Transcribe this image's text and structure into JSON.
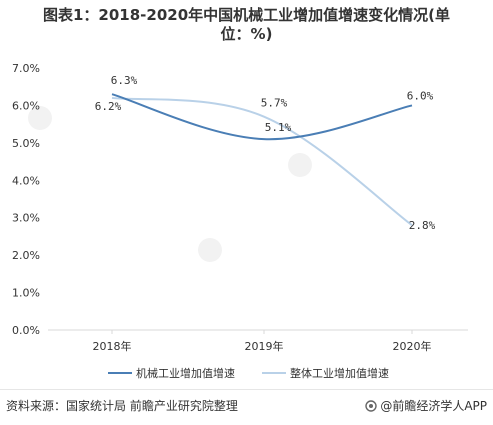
{
  "title_line1": "图表1：2018-2020年中国机械工业增加值增速变化情况(单",
  "title_line2": "位：%)",
  "source": "资料来源：国家统计局 前瞻产业研究院整理",
  "brand": "@前瞻经济学人APP",
  "colors": {
    "series1": "#4a7eb5",
    "series2": "#b9d1e8",
    "axis": "#d9d9d9",
    "text": "#333333",
    "grid": "#f0f0f0"
  },
  "chart_data": {
    "type": "line",
    "categories": [
      "2018年",
      "2019年",
      "2020年"
    ],
    "y_ticks": [
      "0.0%",
      "1.0%",
      "2.0%",
      "3.0%",
      "4.0%",
      "5.0%",
      "6.0%",
      "7.0%"
    ],
    "ylim": [
      0,
      7
    ],
    "grid": false,
    "legend_position": "bottom",
    "series": [
      {
        "name": "机械工业增加值增速",
        "values": [
          6.3,
          5.1,
          6.0
        ],
        "labels": [
          "6.3%",
          "5.1%",
          "6.0%"
        ]
      },
      {
        "name": "整体工业增加值增速",
        "values": [
          6.2,
          5.7,
          2.8
        ],
        "labels": [
          "6.2%",
          "5.7%",
          "2.8%"
        ]
      }
    ]
  }
}
